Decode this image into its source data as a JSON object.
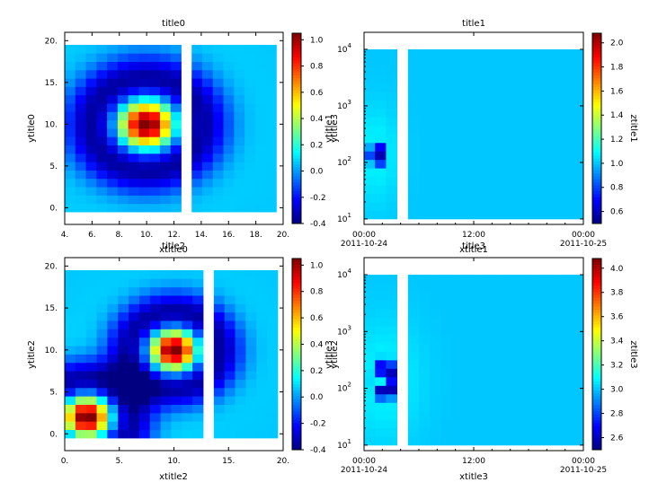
{
  "chart_data": [
    {
      "type": "heatmap",
      "title": "title0",
      "xlabel": "xtitle0",
      "ylabel": "ytitle0",
      "x_scale": "linear",
      "y_scale": "linear",
      "xlim": [
        4,
        20
      ],
      "ylim": [
        -2,
        21
      ],
      "xticks": [
        {
          "v": 4,
          "label": "4."
        },
        {
          "v": 6,
          "label": "6."
        },
        {
          "v": 8,
          "label": "8."
        },
        {
          "v": 10,
          "label": "10."
        },
        {
          "v": 12,
          "label": "12."
        },
        {
          "v": 14,
          "label": "14."
        },
        {
          "v": 16,
          "label": "16."
        },
        {
          "v": 18,
          "label": "18."
        },
        {
          "v": 20,
          "label": "20."
        }
      ],
      "yticks": [
        {
          "v": 0,
          "label": "0."
        },
        {
          "v": 5,
          "label": "5."
        },
        {
          "v": 10,
          "label": "10."
        },
        {
          "v": 15,
          "label": "15."
        },
        {
          "v": 20,
          "label": "20."
        }
      ],
      "grid_x_range": [
        4,
        19.5
      ],
      "grid_y_range": [
        -0.5,
        19.5
      ],
      "gap_x_range": [
        12.5,
        13.5
      ],
      "field": {
        "kind": "ring",
        "peaks": [
          {
            "x": 10,
            "y": 10,
            "amp": 1.0
          }
        ],
        "sigma_x": 2.6,
        "sigma_y": 3.6,
        "ring_radius": 1.5,
        "ring_width": 0.85
      },
      "colorbar": {
        "title": "",
        "range": [
          -0.4,
          1.05
        ],
        "ticks": [
          -0.4,
          -0.2,
          0,
          0.2,
          0.4,
          0.6,
          0.8,
          1
        ],
        "tick_labels": [
          "-0.4",
          "-0.2",
          "0.0",
          "0.2",
          "0.4",
          "0.6",
          "0.8",
          "1.0"
        ]
      },
      "overlap_labels": {
        "x": "title2",
        "y": ""
      }
    },
    {
      "type": "heatmap",
      "title": "title1",
      "xlabel": "xtitle1",
      "ylabel": "ytitle1",
      "x_scale": "time",
      "y_scale": "log",
      "xlim": [
        0,
        24
      ],
      "ylim": [
        8,
        20000
      ],
      "xticks": [
        {
          "v": 0,
          "label": "00:00",
          "sub": "2011-10-24"
        },
        {
          "v": 12,
          "label": "12:00",
          "sub": ""
        },
        {
          "v": 24,
          "label": "00:00",
          "sub": "2011-10-25"
        }
      ],
      "yticks": [
        {
          "v": 10,
          "label": "10",
          "exp": "1"
        },
        {
          "v": 100,
          "label": "10",
          "exp": "2"
        },
        {
          "v": 1000,
          "label": "10",
          "exp": "3"
        },
        {
          "v": 10000,
          "label": "10",
          "exp": "4"
        }
      ],
      "grid_x_range": [
        0,
        24
      ],
      "grid_y_range": [
        10,
        10000
      ],
      "gap_x_range": [
        3.9,
        4.3
      ],
      "field": {
        "kind": "ring",
        "peaks": [
          {
            "x": 1.3,
            "logy": 2.14,
            "amp": 1.0
          }
        ],
        "sigma_x": 1.0,
        "sigma_y": 0.34,
        "ring_radius": 0.5,
        "ring_width": 0.25
      },
      "colorbar": {
        "title": "ztitle1",
        "range": [
          0.5,
          2.08
        ],
        "ticks": [
          0.6,
          0.8,
          1,
          1.2,
          1.4,
          1.6,
          1.8,
          2
        ],
        "tick_labels": [
          "0.6",
          "0.8",
          "1.0",
          "1.2",
          "1.4",
          "1.6",
          "1.8",
          "2.0"
        ]
      },
      "overlap_labels": {
        "x": "title3",
        "y": "ytitle3"
      }
    },
    {
      "type": "heatmap",
      "title": "",
      "xlabel": "xtitle2",
      "ylabel": "ytitle2",
      "x_scale": "linear",
      "y_scale": "linear",
      "xlim": [
        0,
        20
      ],
      "ylim": [
        -2,
        21
      ],
      "xticks": [
        {
          "v": 0,
          "label": "0."
        },
        {
          "v": 5,
          "label": "5."
        },
        {
          "v": 10,
          "label": "10."
        },
        {
          "v": 15,
          "label": "15."
        },
        {
          "v": 20,
          "label": "20."
        }
      ],
      "yticks": [
        {
          "v": 0,
          "label": "0."
        },
        {
          "v": 5,
          "label": "5."
        },
        {
          "v": 10,
          "label": "10."
        },
        {
          "v": 15,
          "label": "15."
        },
        {
          "v": 20,
          "label": "20."
        }
      ],
      "grid_x_range": [
        0,
        19.5
      ],
      "grid_y_range": [
        -0.5,
        19.5
      ],
      "gap_x_range": [
        12.5,
        13.5
      ],
      "field": {
        "kind": "ring",
        "peaks": [
          {
            "x": 10,
            "y": 10,
            "amp": 1.0
          },
          {
            "x": 2,
            "y": 2,
            "amp": 1.0
          }
        ],
        "sigma_x": 2.7,
        "sigma_y": 3.0,
        "ring_radius": 1.5,
        "ring_width": 0.85
      },
      "colorbar": {
        "title": "",
        "range": [
          -0.4,
          1.05
        ],
        "ticks": [
          -0.4,
          -0.2,
          0,
          0.2,
          0.4,
          0.6,
          0.8,
          1
        ],
        "tick_labels": [
          "-0.4",
          "-0.2",
          "0.0",
          "0.2",
          "0.4",
          "0.6",
          "0.8",
          "1.0"
        ]
      },
      "overlap_labels": {
        "x": "",
        "y": ""
      }
    },
    {
      "type": "heatmap",
      "title": "",
      "xlabel": "xtitle3",
      "ylabel": "ytitle3",
      "x_scale": "time",
      "y_scale": "log",
      "xlim": [
        0,
        24
      ],
      "ylim": [
        8,
        20000
      ],
      "xticks": [
        {
          "v": 0,
          "label": "00:00",
          "sub": "2011-10-24"
        },
        {
          "v": 12,
          "label": "12:00",
          "sub": ""
        },
        {
          "v": 24,
          "label": "00:00",
          "sub": "2011-10-25"
        }
      ],
      "yticks": [
        {
          "v": 10,
          "label": "10",
          "exp": "1"
        },
        {
          "v": 100,
          "label": "10",
          "exp": "2"
        },
        {
          "v": 1000,
          "label": "10",
          "exp": "3"
        },
        {
          "v": 10000,
          "label": "10",
          "exp": "4"
        }
      ],
      "grid_x_range": [
        0,
        24
      ],
      "grid_y_range": [
        10,
        10000
      ],
      "gap_x_range": [
        3.9,
        4.3
      ],
      "field": {
        "kind": "ring",
        "peaks": [
          {
            "x": 2.3,
            "logy": 2.15,
            "amp": 1.0
          }
        ],
        "sigma_x": 1.6,
        "sigma_y": 0.42,
        "ring_radius": 0.55,
        "ring_width": 0.3
      },
      "colorbar": {
        "title": "ztitle3",
        "range": [
          2.5,
          4.08
        ],
        "ticks": [
          2.6,
          2.8,
          3,
          3.2,
          3.4,
          3.6,
          3.8,
          4
        ],
        "tick_labels": [
          "2.6",
          "2.8",
          "3.0",
          "3.2",
          "3.4",
          "3.6",
          "3.8",
          "4.0"
        ]
      },
      "overlap_labels": {
        "x": "",
        "y": "ytitle2"
      }
    }
  ]
}
